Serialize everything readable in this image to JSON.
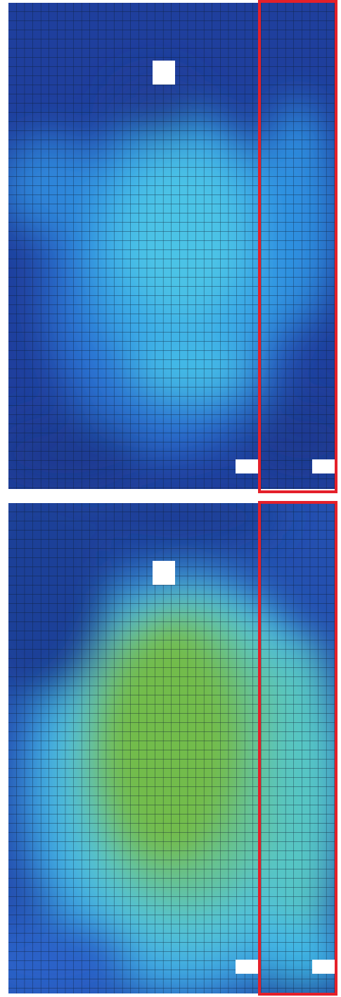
{
  "figure": {
    "panels": [
      {
        "id": "top",
        "field_palette": [
          "#1d3f9a",
          "#2a62c8",
          "#2f8fe0",
          "#39b3ec",
          "#4cc6e8"
        ],
        "obstacles": 3,
        "highlight_color": "#e4202a"
      },
      {
        "id": "bottom",
        "field_palette": [
          "#1d3f9a",
          "#2f8fe0",
          "#45c2e6",
          "#5fc8a6",
          "#74bc3e"
        ],
        "obstacles": 3,
        "highlight_color": "#e4202a"
      }
    ],
    "mesh_color": "#0c1a2e",
    "background": "#ffffff"
  }
}
